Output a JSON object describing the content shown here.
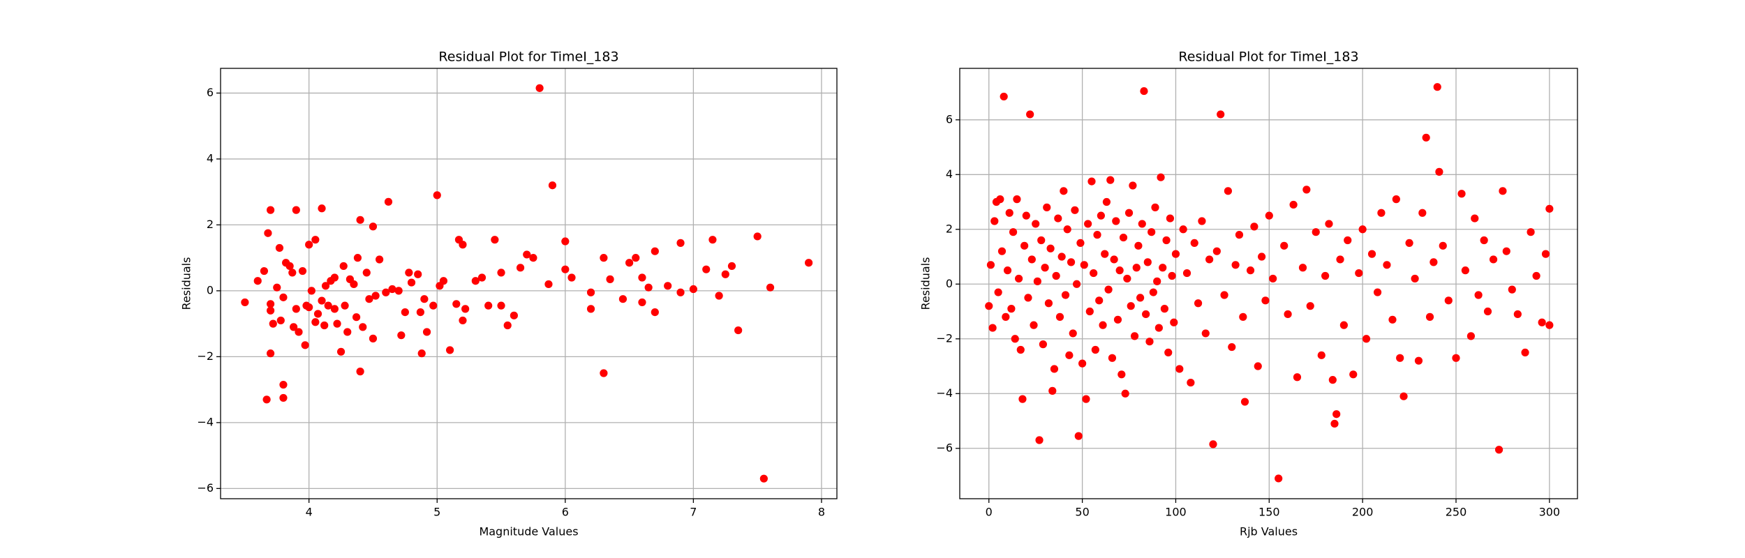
{
  "chart_data": [
    {
      "type": "scatter",
      "title": "Residual Plot for TimeI_183",
      "xlabel": "Magnitude Values",
      "ylabel": "Residuals",
      "color": "#ff0000",
      "grid": true,
      "xlim": [
        3.31,
        8.12
      ],
      "ylim": [
        -6.31,
        6.75
      ],
      "xticks": [
        4,
        5,
        6,
        7,
        8
      ],
      "yticks": [
        {
          "value": -6,
          "label": "−6"
        },
        {
          "value": -4,
          "label": "−4"
        },
        {
          "value": -2,
          "label": "−2"
        },
        0,
        2,
        4,
        6
      ],
      "x": [
        3.5,
        3.6,
        3.65,
        3.67,
        3.68,
        3.7,
        3.7,
        3.7,
        3.7,
        3.72,
        3.75,
        3.77,
        3.78,
        3.8,
        3.8,
        3.8,
        3.82,
        3.85,
        3.87,
        3.88,
        3.9,
        3.9,
        3.92,
        3.95,
        3.97,
        3.98,
        4.0,
        4.0,
        4.02,
        4.05,
        4.05,
        4.07,
        4.1,
        4.1,
        4.12,
        4.13,
        4.15,
        4.17,
        4.2,
        4.2,
        4.22,
        4.25,
        4.27,
        4.28,
        4.3,
        4.32,
        4.35,
        4.37,
        4.38,
        4.4,
        4.4,
        4.42,
        4.45,
        4.47,
        4.5,
        4.5,
        4.52,
        4.55,
        4.6,
        4.62,
        4.65,
        4.7,
        4.72,
        4.75,
        4.78,
        4.8,
        4.85,
        4.87,
        4.88,
        4.9,
        4.92,
        4.97,
        5.0,
        5.02,
        5.05,
        5.1,
        5.15,
        5.17,
        5.2,
        5.2,
        5.22,
        5.3,
        5.35,
        5.4,
        5.45,
        5.5,
        5.5,
        5.55,
        5.6,
        5.65,
        5.7,
        5.75,
        5.8,
        5.87,
        5.9,
        6.0,
        6.0,
        6.05,
        6.2,
        6.2,
        6.3,
        6.3,
        6.35,
        6.45,
        6.5,
        6.55,
        6.6,
        6.6,
        6.65,
        6.7,
        6.7,
        6.8,
        6.9,
        6.9,
        7.0,
        7.1,
        7.15,
        7.2,
        7.25,
        7.3,
        7.35,
        7.5,
        7.55,
        7.6,
        7.9
      ],
      "values": [
        -0.35,
        0.3,
        0.6,
        -3.3,
        1.75,
        2.45,
        -0.4,
        -0.6,
        -1.9,
        -1.0,
        0.1,
        1.3,
        -0.9,
        -0.2,
        -2.85,
        -3.25,
        0.85,
        0.75,
        0.55,
        -1.1,
        2.45,
        -0.55,
        -1.25,
        0.6,
        -1.65,
        -0.45,
        1.4,
        -0.5,
        0.0,
        1.55,
        -0.95,
        -0.7,
        2.5,
        -0.3,
        -1.05,
        0.15,
        -0.45,
        0.3,
        0.4,
        -0.55,
        -1.0,
        -1.85,
        0.75,
        -0.45,
        -1.25,
        0.35,
        0.2,
        -0.8,
        1.0,
        2.15,
        -2.45,
        -1.1,
        0.55,
        -0.25,
        1.95,
        -1.45,
        -0.15,
        0.95,
        -0.05,
        2.7,
        0.05,
        0.0,
        -1.35,
        -0.65,
        0.55,
        0.25,
        0.5,
        -0.65,
        -1.9,
        -0.25,
        -1.25,
        -0.45,
        2.9,
        0.15,
        0.3,
        -1.8,
        -0.4,
        1.55,
        1.4,
        -0.9,
        -0.55,
        0.3,
        0.4,
        -0.45,
        1.55,
        0.55,
        -0.45,
        -1.05,
        -0.75,
        0.7,
        1.1,
        1.0,
        6.15,
        0.2,
        3.2,
        1.5,
        0.65,
        0.4,
        -0.05,
        -0.55,
        1.0,
        -2.5,
        0.35,
        -0.25,
        0.85,
        1.0,
        0.4,
        -0.35,
        0.1,
        1.2,
        -0.65,
        0.15,
        1.45,
        -0.05,
        0.05,
        0.65,
        1.55,
        -0.15,
        0.5,
        0.75,
        -1.2,
        1.65,
        -5.7,
        0.1,
        0.85
      ]
    },
    {
      "type": "scatter",
      "title": "Residual Plot for TimeI_183",
      "xlabel": "Rjb Values",
      "ylabel": "Residuals",
      "color": "#ff0000",
      "grid": true,
      "xlim": [
        -15.6,
        315
      ],
      "ylim": [
        -7.84,
        7.88
      ],
      "xticks": [
        0,
        50,
        100,
        150,
        200,
        250,
        300
      ],
      "yticks": [
        {
          "value": -6,
          "label": "−6"
        },
        {
          "value": -4,
          "label": "−4"
        },
        {
          "value": -2,
          "label": "−2"
        },
        0,
        2,
        4,
        6
      ],
      "x": [
        0,
        1,
        2,
        3,
        4,
        5,
        6,
        7,
        8,
        9,
        10,
        11,
        12,
        13,
        14,
        15,
        16,
        17,
        18,
        19,
        20,
        21,
        22,
        23,
        24,
        25,
        26,
        27,
        28,
        29,
        30,
        31,
        32,
        33,
        34,
        35,
        36,
        37,
        38,
        39,
        40,
        41,
        42,
        43,
        44,
        45,
        46,
        47,
        48,
        49,
        50,
        51,
        52,
        53,
        54,
        55,
        56,
        57,
        58,
        59,
        60,
        61,
        62,
        63,
        64,
        65,
        66,
        67,
        68,
        69,
        70,
        71,
        72,
        73,
        74,
        75,
        76,
        77,
        78,
        79,
        80,
        81,
        82,
        83,
        84,
        85,
        86,
        87,
        88,
        89,
        90,
        91,
        92,
        93,
        94,
        95,
        96,
        97,
        98,
        99,
        100,
        102,
        104,
        106,
        108,
        110,
        112,
        114,
        116,
        118,
        120,
        122,
        124,
        126,
        128,
        130,
        132,
        134,
        136,
        137,
        140,
        142,
        144,
        146,
        148,
        150,
        152,
        155,
        158,
        160,
        163,
        165,
        168,
        170,
        172,
        175,
        178,
        180,
        182,
        184,
        185,
        186,
        188,
        190,
        192,
        195,
        198,
        200,
        202,
        205,
        208,
        210,
        213,
        216,
        218,
        220,
        222,
        225,
        228,
        230,
        232,
        234,
        236,
        238,
        240,
        241,
        243,
        246,
        250,
        253,
        255,
        258,
        260,
        262,
        265,
        267,
        270,
        273,
        275,
        277,
        280,
        283,
        287,
        290,
        293,
        296,
        298,
        300,
        300
      ],
      "values": [
        -0.8,
        0.7,
        -1.6,
        2.3,
        3.0,
        -0.3,
        3.1,
        1.2,
        6.85,
        -1.2,
        0.5,
        2.6,
        -0.9,
        1.9,
        -2.0,
        3.1,
        0.2,
        -2.4,
        -4.2,
        1.4,
        2.5,
        -0.5,
        6.2,
        0.9,
        -1.5,
        2.2,
        0.1,
        -5.7,
        1.6,
        -2.2,
        0.6,
        2.8,
        -0.7,
        1.3,
        -3.9,
        -3.1,
        0.3,
        2.4,
        -1.2,
        1.0,
        3.4,
        -0.4,
        2.0,
        -2.6,
        0.8,
        -1.8,
        2.7,
        0.0,
        -5.55,
        1.5,
        -2.9,
        0.7,
        -4.2,
        2.2,
        -1.0,
        3.75,
        0.4,
        -2.4,
        1.8,
        -0.6,
        2.5,
        -1.5,
        1.1,
        3.0,
        -0.2,
        3.8,
        -2.7,
        0.9,
        2.3,
        -1.3,
        0.5,
        -3.3,
        1.7,
        -4.0,
        0.2,
        2.6,
        -0.8,
        3.6,
        -1.9,
        0.6,
        1.4,
        -0.5,
        2.2,
        7.05,
        -1.1,
        0.8,
        -2.1,
        1.9,
        -0.3,
        2.8,
        0.1,
        -1.6,
        3.9,
        0.6,
        -0.9,
        1.6,
        -2.5,
        2.4,
        0.3,
        -1.4,
        1.1,
        -3.1,
        2.0,
        0.4,
        -3.6,
        1.5,
        -0.7,
        2.3,
        -1.8,
        0.9,
        -5.85,
        1.2,
        6.2,
        -0.4,
        3.4,
        -2.3,
        0.7,
        1.8,
        -1.2,
        -4.3,
        0.5,
        2.1,
        -3.0,
        1.0,
        -0.6,
        2.5,
        0.2,
        -7.1,
        1.4,
        -1.1,
        2.9,
        -3.4,
        0.6,
        3.45,
        -0.8,
        1.9,
        -2.6,
        0.3,
        2.2,
        -3.5,
        -5.1,
        -4.75,
        0.9,
        -1.5,
        1.6,
        -3.3,
        0.4,
        2.0,
        -2.0,
        1.1,
        -0.3,
        2.6,
        0.7,
        -1.3,
        3.1,
        -2.7,
        -4.1,
        1.5,
        0.2,
        -2.8,
        2.6,
        5.35,
        -1.2,
        0.8,
        7.2,
        4.1,
        1.4,
        -0.6,
        -2.7,
        3.3,
        0.5,
        -1.9,
        2.4,
        -0.4,
        1.6,
        -1.0,
        0.9,
        -6.05,
        3.4,
        1.2,
        -0.2,
        -1.1,
        -2.5,
        1.9,
        0.3,
        -1.4,
        1.1,
        2.75,
        -1.5
      ]
    }
  ]
}
